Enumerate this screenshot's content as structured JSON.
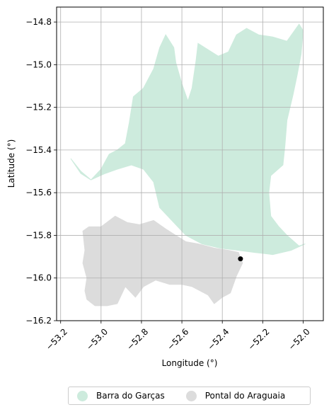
{
  "chart_data": {
    "type": "map",
    "xlabel": "Longitude (°)",
    "ylabel": "Latitude (°)",
    "xlim": [
      -53.22,
      -51.9
    ],
    "ylim": [
      -16.2,
      -14.73
    ],
    "xticks": [
      -53.2,
      -53.0,
      -52.8,
      -52.6,
      -52.4,
      -52.2,
      -52.0
    ],
    "xtick_labels": [
      "−53.2",
      "−53.0",
      "−52.8",
      "−52.6",
      "−52.4",
      "−52.2",
      "−52.0"
    ],
    "yticks": [
      -14.8,
      -15.0,
      -15.2,
      -15.4,
      -15.6,
      -15.8,
      -16.0,
      -16.2
    ],
    "ytick_labels": [
      "−14.8",
      "−15.0",
      "−15.2",
      "−15.4",
      "−15.6",
      "−15.8",
      "−16.0",
      "−16.2"
    ],
    "grid": true,
    "legend_position": "bottom-center",
    "regions": [
      {
        "name": "Barra do Garças",
        "color": "#cdebdd",
        "polygon": [
          [
            -53.15,
            -15.44
          ],
          [
            -53.1,
            -15.5
          ],
          [
            -53.05,
            -15.54
          ],
          [
            -53.0,
            -15.49
          ],
          [
            -52.96,
            -15.42
          ],
          [
            -52.92,
            -15.4
          ],
          [
            -52.88,
            -15.37
          ],
          [
            -52.86,
            -15.27
          ],
          [
            -52.84,
            -15.15
          ],
          [
            -52.79,
            -15.11
          ],
          [
            -52.74,
            -15.02
          ],
          [
            -52.71,
            -14.92
          ],
          [
            -52.68,
            -14.86
          ],
          [
            -52.64,
            -14.92
          ],
          [
            -52.63,
            -14.99
          ],
          [
            -52.6,
            -15.09
          ],
          [
            -52.57,
            -15.17
          ],
          [
            -52.55,
            -15.11
          ],
          [
            -52.53,
            -14.98
          ],
          [
            -52.52,
            -14.9
          ],
          [
            -52.47,
            -14.93
          ],
          [
            -52.42,
            -14.96
          ],
          [
            -52.37,
            -14.94
          ],
          [
            -52.33,
            -14.86
          ],
          [
            -52.28,
            -14.83
          ],
          [
            -52.22,
            -14.86
          ],
          [
            -52.15,
            -14.87
          ],
          [
            -52.08,
            -14.89
          ],
          [
            -52.02,
            -14.81
          ],
          [
            -52.0,
            -14.84
          ],
          [
            -52.01,
            -14.95
          ],
          [
            -52.03,
            -15.05
          ],
          [
            -52.05,
            -15.14
          ],
          [
            -52.08,
            -15.26
          ],
          [
            -52.09,
            -15.38
          ],
          [
            -52.1,
            -15.47
          ],
          [
            -52.16,
            -15.52
          ],
          [
            -52.17,
            -15.6
          ],
          [
            -52.16,
            -15.71
          ],
          [
            -52.12,
            -15.76
          ],
          [
            -52.08,
            -15.8
          ],
          [
            -52.02,
            -15.85
          ],
          [
            -51.99,
            -15.84
          ],
          [
            -52.06,
            -15.87
          ],
          [
            -52.15,
            -15.89
          ],
          [
            -52.24,
            -15.88
          ],
          [
            -52.32,
            -15.87
          ],
          [
            -52.41,
            -15.86
          ],
          [
            -52.5,
            -15.84
          ],
          [
            -52.58,
            -15.8
          ],
          [
            -52.63,
            -15.75
          ],
          [
            -52.71,
            -15.67
          ],
          [
            -52.74,
            -15.55
          ],
          [
            -52.79,
            -15.49
          ],
          [
            -52.85,
            -15.47
          ],
          [
            -52.92,
            -15.49
          ],
          [
            -52.98,
            -15.51
          ],
          [
            -53.05,
            -15.54
          ],
          [
            -53.1,
            -15.51
          ]
        ]
      },
      {
        "name": "Pontal do Araguaia",
        "color": "#dcdcdc",
        "polygon": [
          [
            -53.09,
            -15.78
          ],
          [
            -53.06,
            -15.76
          ],
          [
            -53.0,
            -15.76
          ],
          [
            -52.93,
            -15.71
          ],
          [
            -52.87,
            -15.74
          ],
          [
            -52.81,
            -15.75
          ],
          [
            -52.74,
            -15.73
          ],
          [
            -52.68,
            -15.77
          ],
          [
            -52.63,
            -15.8
          ],
          [
            -52.58,
            -15.83
          ],
          [
            -52.52,
            -15.84
          ],
          [
            -52.44,
            -15.86
          ],
          [
            -52.37,
            -15.87
          ],
          [
            -52.32,
            -15.88
          ],
          [
            -52.3,
            -15.93
          ],
          [
            -52.33,
            -15.99
          ],
          [
            -52.36,
            -16.07
          ],
          [
            -52.4,
            -16.09
          ],
          [
            -52.44,
            -16.12
          ],
          [
            -52.47,
            -16.08
          ],
          [
            -52.55,
            -16.04
          ],
          [
            -52.6,
            -16.03
          ],
          [
            -52.66,
            -16.03
          ],
          [
            -52.73,
            -16.01
          ],
          [
            -52.79,
            -16.04
          ],
          [
            -52.83,
            -16.09
          ],
          [
            -52.88,
            -16.04
          ],
          [
            -52.92,
            -16.12
          ],
          [
            -52.97,
            -16.13
          ],
          [
            -53.03,
            -16.13
          ],
          [
            -53.07,
            -16.1
          ],
          [
            -53.08,
            -16.06
          ],
          [
            -53.07,
            -16.0
          ],
          [
            -53.09,
            -15.93
          ],
          [
            -53.08,
            -15.87
          ]
        ]
      }
    ],
    "markers": [
      {
        "lon": -52.31,
        "lat": -15.91,
        "color": "#000000"
      }
    ]
  },
  "legend": {
    "items": [
      {
        "label": "Barra do Garças",
        "color": "#cdebdd"
      },
      {
        "label": "Pontal do Araguaia",
        "color": "#dcdcdc"
      }
    ]
  }
}
